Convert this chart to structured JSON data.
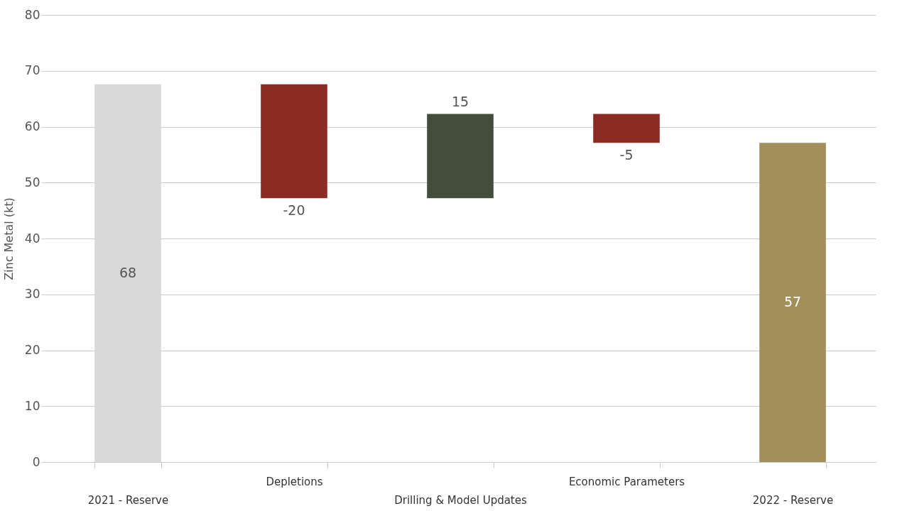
{
  "chart_data": {
    "type": "bar",
    "ylabel": "Zinc Metal (kt)",
    "categories": [
      "2021 - Reserve",
      "Depletions",
      "Drilling & Model Updates",
      "Economic Parameters",
      "2022 - Reserve"
    ],
    "values": [
      67.6,
      -20.4,
      15.1,
      -5.2,
      57.1
    ],
    "base": [
      0,
      67.6,
      47.2,
      62.3,
      0
    ],
    "colors": [
      "#d9d9d9",
      "#8b2b22",
      "#434d3c",
      "#8b2b22",
      "#a38f5c"
    ],
    "value_labels": [
      "68",
      "-20",
      "15",
      "-5",
      "57"
    ],
    "ylim": [
      0,
      80
    ],
    "yticks": [
      0,
      10,
      20,
      30,
      40,
      50,
      60,
      70,
      80
    ],
    "grid": "y"
  }
}
